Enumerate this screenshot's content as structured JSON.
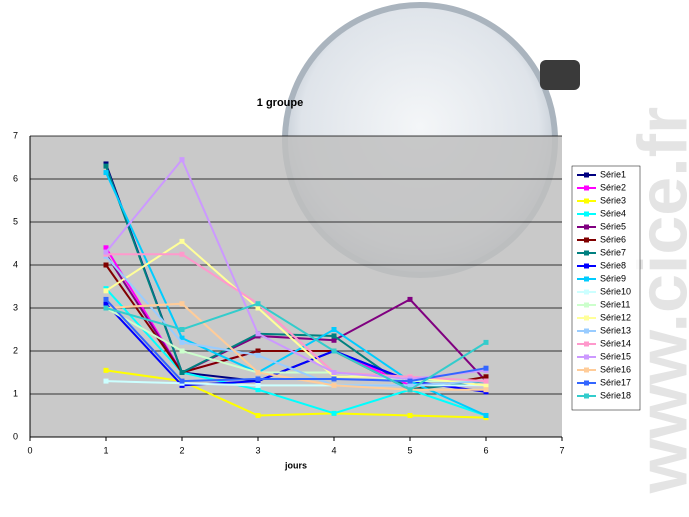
{
  "chart_data": {
    "type": "line",
    "title": "1 groupe",
    "xlabel": "jours",
    "watermark": "www.cice.fr",
    "x": [
      1,
      2,
      3,
      4,
      5,
      6
    ],
    "xlim": [
      0,
      7
    ],
    "xticks": [
      0,
      1,
      2,
      3,
      4,
      5,
      6,
      7
    ],
    "ylim": [
      0,
      7
    ],
    "yticks": [
      0,
      1,
      2,
      3,
      4,
      5,
      6,
      7
    ],
    "grid": true,
    "legend": "right",
    "series": [
      {
        "name": "Série1",
        "color": "#000080",
        "values": [
          6.35,
          1.5,
          1.3,
          2.0,
          1.3,
          1.3
        ]
      },
      {
        "name": "Série2",
        "color": "#ff00ff",
        "values": [
          4.4,
          1.5,
          2.0,
          2.0,
          1.2,
          1.2
        ]
      },
      {
        "name": "Série3",
        "color": "#ffff00",
        "values": [
          1.55,
          1.3,
          0.5,
          0.55,
          0.5,
          0.45
        ]
      },
      {
        "name": "Série4",
        "color": "#00ffff",
        "values": [
          3.45,
          1.5,
          1.1,
          0.55,
          1.1,
          0.5
        ]
      },
      {
        "name": "Série5",
        "color": "#800080",
        "values": [
          4.25,
          1.5,
          2.35,
          2.25,
          3.2,
          1.3
        ]
      },
      {
        "name": "Série6",
        "color": "#800000",
        "values": [
          4.0,
          1.5,
          2.0,
          2.0,
          1.1,
          1.4
        ]
      },
      {
        "name": "Série7",
        "color": "#008080",
        "values": [
          6.3,
          1.5,
          2.4,
          2.35,
          1.1,
          1.3
        ]
      },
      {
        "name": "Série8",
        "color": "#0000ff",
        "values": [
          3.1,
          1.2,
          1.3,
          2.0,
          1.3,
          1.05
        ]
      },
      {
        "name": "Série9",
        "color": "#00ccff",
        "values": [
          6.15,
          2.3,
          1.5,
          2.5,
          1.3,
          0.5
        ]
      },
      {
        "name": "Série10",
        "color": "#ccffff",
        "values": [
          1.3,
          1.25,
          1.2,
          1.2,
          1.2,
          1.2
        ]
      },
      {
        "name": "Série11",
        "color": "#ccffcc",
        "values": [
          3.0,
          2.0,
          1.5,
          1.5,
          1.3,
          1.3
        ]
      },
      {
        "name": "Série12",
        "color": "#ffff99",
        "values": [
          3.4,
          4.55,
          3.0,
          1.4,
          1.4,
          1.2
        ]
      },
      {
        "name": "Série13",
        "color": "#99ccff",
        "values": [
          4.2,
          2.2,
          1.9,
          1.2,
          1.2,
          1.3
        ]
      },
      {
        "name": "Série14",
        "color": "#ff99cc",
        "values": [
          4.25,
          4.25,
          3.1,
          1.5,
          1.4,
          1.3
        ]
      },
      {
        "name": "Série15",
        "color": "#cc99ff",
        "values": [
          4.3,
          6.45,
          2.4,
          1.5,
          1.35,
          1.55
        ]
      },
      {
        "name": "Série16",
        "color": "#ffcc99",
        "values": [
          3.0,
          3.1,
          1.5,
          1.2,
          1.1,
          1.1
        ]
      },
      {
        "name": "Série17",
        "color": "#3366ff",
        "values": [
          3.2,
          1.3,
          1.35,
          1.35,
          1.3,
          1.6
        ]
      },
      {
        "name": "Série18",
        "color": "#33cccc",
        "values": [
          3.0,
          2.5,
          3.1,
          2.0,
          1.1,
          2.2
        ]
      }
    ]
  }
}
